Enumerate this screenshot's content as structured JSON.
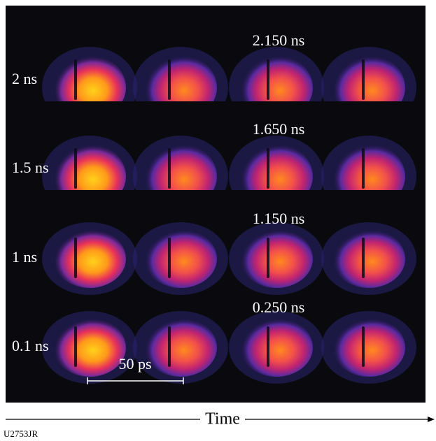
{
  "rows": [
    {
      "label": "2 ns",
      "time": "2.150 ns"
    },
    {
      "label": "1.5 ns",
      "time": "1.650 ns"
    },
    {
      "label": "1 ns",
      "time": "1.150 ns"
    },
    {
      "label": "0.1 ns",
      "time": "0.250 ns"
    }
  ],
  "scale_bar": "50 ps",
  "axis_label": "Time",
  "figure_id": "U2753JR"
}
